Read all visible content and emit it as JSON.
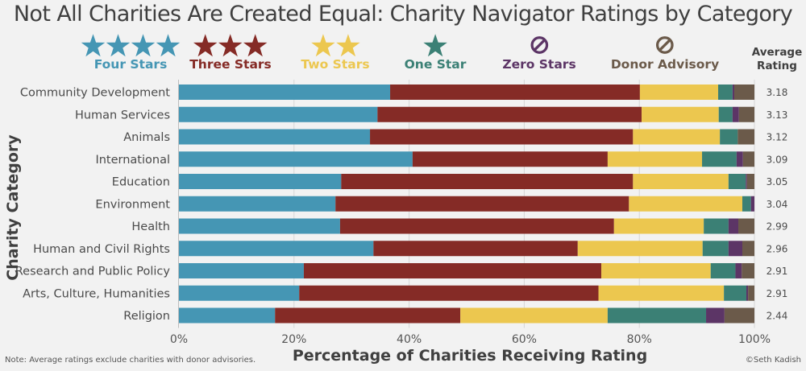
{
  "chart_data": {
    "type": "bar",
    "orientation": "horizontal",
    "stacked": true,
    "title": "Not All Charities Are Created Equal: Charity Navigator Ratings by Category",
    "xlabel": "Percentage of Charities Receiving Rating",
    "ylabel": "Charity Category",
    "xlim": [
      0,
      100
    ],
    "x_ticks": [
      "0%",
      "20%",
      "40%",
      "60%",
      "80%",
      "100%"
    ],
    "x_tick_values": [
      0,
      20,
      40,
      60,
      80,
      100
    ],
    "grid": true,
    "legend_position": "top",
    "categories": [
      "Community Development",
      "Human Services",
      "Animals",
      "International",
      "Education",
      "Environment",
      "Health",
      "Human and Civil Rights",
      "Research and Public Policy",
      "Arts, Culture, Humanities",
      "Religion"
    ],
    "series": [
      {
        "name": "Four Stars",
        "icon": "star",
        "icon_count": 4,
        "color": "#4596b4",
        "values": [
          36.7,
          34.5,
          33.2,
          40.6,
          28.2,
          27.2,
          28.0,
          33.8,
          21.7,
          20.9,
          16.7
        ]
      },
      {
        "name": "Three Stars",
        "icon": "star",
        "icon_count": 3,
        "color": "#852b26",
        "values": [
          43.4,
          45.9,
          45.7,
          33.9,
          50.7,
          51.0,
          47.6,
          35.5,
          51.7,
          52.0,
          32.2
        ]
      },
      {
        "name": "Two Stars",
        "icon": "star",
        "icon_count": 2,
        "color": "#ecc74f",
        "values": [
          13.6,
          13.4,
          15.1,
          16.4,
          16.6,
          19.7,
          15.6,
          21.7,
          19.0,
          21.8,
          25.6
        ]
      },
      {
        "name": "One Star",
        "icon": "star",
        "icon_count": 1,
        "color": "#3b8075",
        "values": [
          2.5,
          2.4,
          3.1,
          6.0,
          3.0,
          1.5,
          4.3,
          4.5,
          4.3,
          3.9,
          17.1
        ]
      },
      {
        "name": "Zero Stars",
        "icon": "prohibited",
        "icon_count": 1,
        "color": "#5c3566",
        "values": [
          0.3,
          1.1,
          0.0,
          1.1,
          0.2,
          0.6,
          1.7,
          2.4,
          1.1,
          0.3,
          3.2
        ]
      },
      {
        "name": "Donor Advisory",
        "icon": "prohibited",
        "icon_count": 1,
        "color": "#6b5a4a",
        "values": [
          3.5,
          2.7,
          2.9,
          2.0,
          1.3,
          0.0,
          2.8,
          2.1,
          2.2,
          1.1,
          5.2
        ]
      }
    ],
    "average_rating": {
      "header": [
        "Average",
        "Rating"
      ],
      "values": [
        "3.18",
        "3.13",
        "3.12",
        "3.09",
        "3.05",
        "3.04",
        "2.99",
        "2.96",
        "2.91",
        "2.91",
        "2.44"
      ]
    }
  },
  "footer": {
    "note": "Note: Average ratings exclude charities with donor advisories.",
    "credit": "©Seth Kadish"
  }
}
